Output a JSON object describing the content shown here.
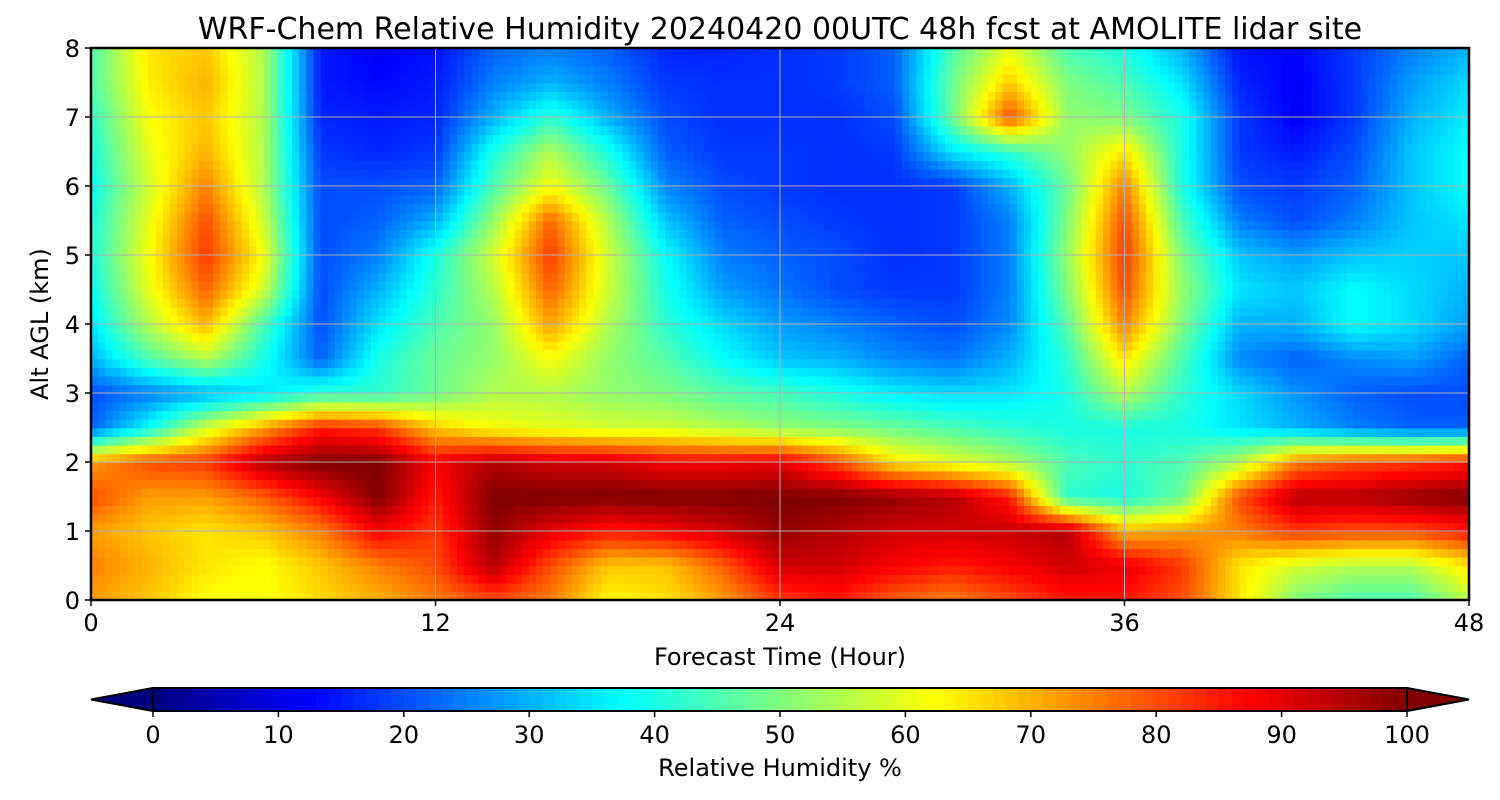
{
  "chart_data": {
    "type": "heatmap",
    "title": "WRF-Chem Relative Humidity 20240420 00UTC 48h fcst at AMOLITE lidar site",
    "xlabel": "Forecast Time (Hour)",
    "ylabel": "Alt AGL (km)",
    "xlim": [
      0,
      48
    ],
    "ylim": [
      0,
      8
    ],
    "x_ticks": [
      0,
      12,
      24,
      36,
      48
    ],
    "y_ticks": [
      0,
      1,
      2,
      3,
      4,
      5,
      6,
      7,
      8
    ],
    "grid": true,
    "colormap": "jet",
    "colorbar": {
      "label": "Relative Humidity %",
      "min": 0,
      "max": 100,
      "ticks": [
        0,
        10,
        20,
        30,
        40,
        50,
        60,
        70,
        80,
        90,
        100
      ],
      "extend": "both",
      "orientation": "horizontal"
    },
    "x": [
      0,
      2,
      4,
      6,
      8,
      10,
      12,
      14,
      16,
      18,
      20,
      22,
      24,
      26,
      28,
      30,
      32,
      34,
      36,
      38,
      40,
      42,
      44,
      46,
      48
    ],
    "y": [
      0,
      0.5,
      1,
      1.5,
      2,
      2.5,
      3,
      3.5,
      4,
      4.5,
      5,
      5.5,
      6,
      6.5,
      7,
      7.5,
      8
    ],
    "z": [
      [
        72,
        68,
        62,
        62,
        66,
        70,
        75,
        80,
        75,
        63,
        65,
        72,
        82,
        85,
        78,
        75,
        80,
        85,
        85,
        80,
        65,
        50,
        45,
        45,
        55
      ],
      [
        75,
        70,
        65,
        62,
        68,
        75,
        80,
        95,
        80,
        68,
        68,
        78,
        92,
        92,
        88,
        85,
        88,
        92,
        90,
        82,
        65,
        58,
        55,
        55,
        65
      ],
      [
        72,
        68,
        65,
        68,
        75,
        88,
        82,
        98,
        90,
        85,
        88,
        92,
        98,
        95,
        92,
        92,
        93,
        95,
        70,
        72,
        75,
        82,
        80,
        80,
        85
      ],
      [
        80,
        72,
        72,
        78,
        88,
        100,
        85,
        100,
        100,
        100,
        100,
        100,
        100,
        100,
        98,
        95,
        85,
        42,
        40,
        48,
        80,
        95,
        95,
        98,
        100
      ],
      [
        72,
        80,
        82,
        95,
        100,
        100,
        88,
        95,
        92,
        92,
        88,
        88,
        90,
        80,
        65,
        60,
        55,
        45,
        42,
        45,
        55,
        75,
        80,
        82,
        85
      ],
      [
        22,
        38,
        58,
        72,
        85,
        82,
        68,
        62,
        60,
        58,
        58,
        55,
        52,
        50,
        48,
        45,
        42,
        40,
        40,
        40,
        35,
        30,
        25,
        22,
        22
      ],
      [
        20,
        25,
        30,
        35,
        42,
        42,
        48,
        55,
        55,
        52,
        50,
        46,
        44,
        40,
        36,
        34,
        35,
        40,
        55,
        42,
        34,
        27,
        22,
        20,
        20
      ],
      [
        30,
        45,
        55,
        40,
        22,
        40,
        48,
        52,
        62,
        52,
        46,
        38,
        32,
        30,
        26,
        24,
        30,
        42,
        65,
        45,
        26,
        22,
        26,
        28,
        22
      ],
      [
        35,
        55,
        70,
        45,
        20,
        35,
        45,
        52,
        72,
        55,
        42,
        34,
        28,
        25,
        22,
        20,
        26,
        46,
        75,
        50,
        30,
        30,
        38,
        34,
        28
      ],
      [
        38,
        60,
        78,
        58,
        20,
        30,
        42,
        55,
        78,
        58,
        40,
        28,
        24,
        20,
        18,
        18,
        25,
        50,
        80,
        52,
        35,
        32,
        38,
        34,
        30
      ],
      [
        40,
        62,
        82,
        62,
        20,
        25,
        40,
        58,
        82,
        58,
        38,
        25,
        22,
        20,
        17,
        18,
        25,
        52,
        82,
        50,
        32,
        28,
        32,
        33,
        32
      ],
      [
        40,
        60,
        80,
        58,
        20,
        22,
        30,
        52,
        78,
        55,
        32,
        22,
        20,
        18,
        17,
        18,
        25,
        50,
        80,
        45,
        25,
        20,
        25,
        32,
        35
      ],
      [
        38,
        58,
        75,
        55,
        20,
        20,
        22,
        45,
        62,
        48,
        26,
        20,
        18,
        17,
        17,
        18,
        30,
        48,
        75,
        40,
        20,
        18,
        22,
        32,
        38
      ],
      [
        40,
        60,
        70,
        55,
        18,
        16,
        18,
        40,
        55,
        40,
        22,
        18,
        18,
        17,
        18,
        35,
        42,
        52,
        65,
        40,
        18,
        15,
        20,
        32,
        38
      ],
      [
        42,
        62,
        68,
        55,
        16,
        15,
        16,
        30,
        42,
        30,
        20,
        17,
        17,
        17,
        20,
        48,
        80,
        52,
        50,
        40,
        18,
        12,
        18,
        30,
        36
      ],
      [
        45,
        64,
        70,
        55,
        15,
        13,
        15,
        25,
        30,
        25,
        18,
        17,
        17,
        18,
        22,
        48,
        68,
        50,
        45,
        35,
        16,
        12,
        18,
        28,
        34
      ],
      [
        45,
        65,
        68,
        55,
        15,
        12,
        14,
        22,
        25,
        22,
        16,
        16,
        17,
        18,
        22,
        45,
        60,
        45,
        40,
        30,
        14,
        13,
        18,
        25,
        30
      ]
    ]
  }
}
